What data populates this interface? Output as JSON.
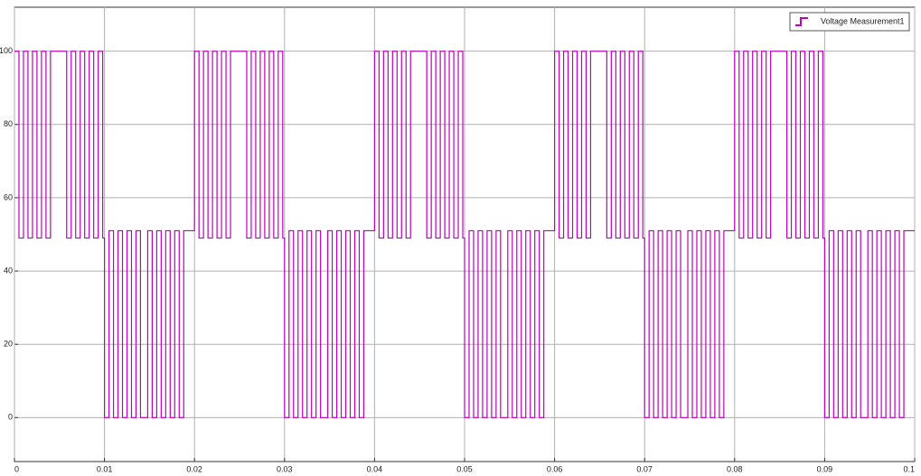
{
  "chart_data": {
    "type": "line",
    "drawstyle": "steps-post",
    "grid": true,
    "legend": "upper right",
    "xlim": [
      0,
      0.1
    ],
    "xticks": [
      0,
      0.01,
      0.02,
      0.03,
      0.04,
      0.05,
      0.06,
      0.07,
      0.08,
      0.09,
      0.1
    ],
    "ylim": [
      -12,
      112
    ],
    "yticks": [
      0,
      20,
      40,
      60,
      80,
      100
    ],
    "x": [
      0,
      0.0005,
      0.001,
      0.0015,
      0.002,
      0.0025,
      0.003,
      0.0035,
      0.004,
      0.0058,
      0.0063,
      0.0068,
      0.0073,
      0.0078,
      0.0083,
      0.0088,
      0.0093,
      0.0098,
      0.01,
      0.0105,
      0.011,
      0.0115,
      0.012,
      0.0125,
      0.013,
      0.0135,
      0.014,
      0.0148,
      0.0153,
      0.0158,
      0.0163,
      0.0168,
      0.0173,
      0.0178,
      0.0183,
      0.0188,
      0.02,
      0.0205,
      0.021,
      0.0215,
      0.022,
      0.0225,
      0.023,
      0.0235,
      0.024,
      0.0258,
      0.0263,
      0.0268,
      0.0273,
      0.0278,
      0.0283,
      0.0288,
      0.0293,
      0.0298,
      0.03,
      0.0305,
      0.031,
      0.0315,
      0.032,
      0.0325,
      0.033,
      0.0335,
      0.034,
      0.0348,
      0.0353,
      0.0358,
      0.0363,
      0.0368,
      0.0373,
      0.0378,
      0.0383,
      0.0388,
      0.04,
      0.0405,
      0.041,
      0.0415,
      0.042,
      0.0425,
      0.043,
      0.0435,
      0.044,
      0.0458,
      0.0463,
      0.0468,
      0.0473,
      0.0478,
      0.0483,
      0.0488,
      0.0493,
      0.0498,
      0.05,
      0.0505,
      0.051,
      0.0515,
      0.052,
      0.0525,
      0.053,
      0.0535,
      0.054,
      0.0548,
      0.0553,
      0.0558,
      0.0563,
      0.0568,
      0.0573,
      0.0578,
      0.0583,
      0.0588,
      0.06,
      0.0605,
      0.061,
      0.0615,
      0.062,
      0.0625,
      0.063,
      0.0635,
      0.064,
      0.0658,
      0.0663,
      0.0668,
      0.0673,
      0.0678,
      0.0683,
      0.0688,
      0.0693,
      0.0698,
      0.07,
      0.0705,
      0.071,
      0.0715,
      0.072,
      0.0725,
      0.073,
      0.0735,
      0.074,
      0.0748,
      0.0753,
      0.0758,
      0.0763,
      0.0768,
      0.0773,
      0.0778,
      0.0783,
      0.0788,
      0.08,
      0.0805,
      0.081,
      0.0815,
      0.082,
      0.0825,
      0.083,
      0.0835,
      0.084,
      0.0858,
      0.0863,
      0.0868,
      0.0873,
      0.0878,
      0.0883,
      0.0888,
      0.0893,
      0.0898,
      0.09,
      0.0905,
      0.091,
      0.0915,
      0.092,
      0.0925,
      0.093,
      0.0935,
      0.094,
      0.0948,
      0.0953,
      0.0958,
      0.0963,
      0.0968,
      0.0973,
      0.0978,
      0.0983,
      0.0988,
      0.1
    ],
    "series": [
      {
        "name": "Voltage Measurement1",
        "color": "#bf00bf",
        "values": [
          100,
          49,
          100,
          49,
          100,
          49,
          100,
          49,
          100,
          49,
          100,
          49,
          100,
          49,
          100,
          49,
          100,
          49,
          0,
          51,
          0,
          51,
          0,
          51,
          0,
          51,
          0,
          51,
          0,
          51,
          0,
          51,
          0,
          51,
          0,
          51,
          100,
          49,
          100,
          49,
          100,
          49,
          100,
          49,
          100,
          49,
          100,
          49,
          100,
          49,
          100,
          49,
          100,
          49,
          0,
          51,
          0,
          51,
          0,
          51,
          0,
          51,
          0,
          51,
          0,
          51,
          0,
          51,
          0,
          51,
          0,
          51,
          100,
          49,
          100,
          49,
          100,
          49,
          100,
          49,
          100,
          49,
          100,
          49,
          100,
          49,
          100,
          49,
          100,
          49,
          0,
          51,
          0,
          51,
          0,
          51,
          0,
          51,
          0,
          51,
          0,
          51,
          0,
          51,
          0,
          51,
          0,
          51,
          100,
          49,
          100,
          49,
          100,
          49,
          100,
          49,
          100,
          49,
          100,
          49,
          100,
          49,
          100,
          49,
          100,
          49,
          0,
          51,
          0,
          51,
          0,
          51,
          0,
          51,
          0,
          51,
          0,
          51,
          0,
          51,
          0,
          51,
          0,
          51,
          100,
          49,
          100,
          49,
          100,
          49,
          100,
          49,
          100,
          49,
          100,
          49,
          100,
          49,
          100,
          49,
          100,
          49,
          0,
          51,
          0,
          51,
          0,
          51,
          0,
          51,
          0,
          51,
          0,
          51,
          0,
          51,
          0,
          51,
          0,
          51,
          51
        ]
      }
    ]
  }
}
